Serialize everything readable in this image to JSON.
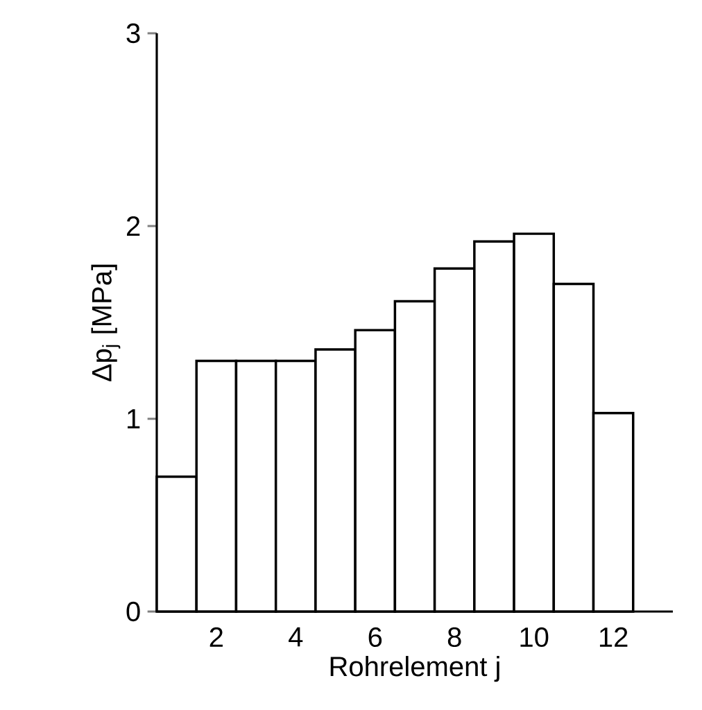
{
  "chart_data": {
    "type": "bar",
    "xlabel": "Rohrelement j",
    "ylabel": "Δp$_{j}$ [MPa]",
    "x": [
      1,
      2,
      3,
      4,
      5,
      6,
      7,
      8,
      9,
      10,
      11,
      12
    ],
    "values": [
      0.7,
      1.3,
      1.3,
      1.3,
      1.36,
      1.46,
      1.61,
      1.78,
      1.92,
      1.96,
      1.7,
      1.03
    ],
    "color": "#ffffff",
    "xlim": [
      0.5,
      13.5
    ],
    "xticks": [
      2,
      4,
      6,
      8,
      10,
      12
    ],
    "ylim": [
      0,
      3
    ],
    "yticks": [
      0,
      1,
      2,
      3
    ]
  }
}
